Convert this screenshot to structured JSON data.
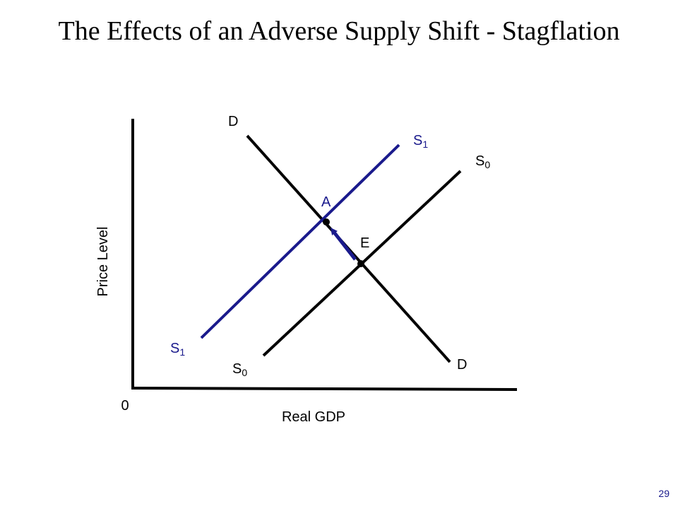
{
  "slide": {
    "title": "The Effects of an Adverse Supply Shift - Stagflation",
    "page_number": "29"
  },
  "axes": {
    "y_label": "Price Level",
    "x_label": "Real GDP",
    "origin": "0"
  },
  "curves": {
    "demand": {
      "top": "D",
      "bottom": "D"
    },
    "supply_initial": {
      "letter": "S",
      "subscript": "0"
    },
    "supply_new": {
      "letter": "S",
      "subscript": "1"
    }
  },
  "points": {
    "initial": "E",
    "new": "A"
  },
  "colors": {
    "axis": "#000000",
    "initial_curves": "#000000",
    "shifted_curve": "#1a1a8c",
    "arrow": "#1a1a8c",
    "page_number": "#1a1a8c"
  }
}
